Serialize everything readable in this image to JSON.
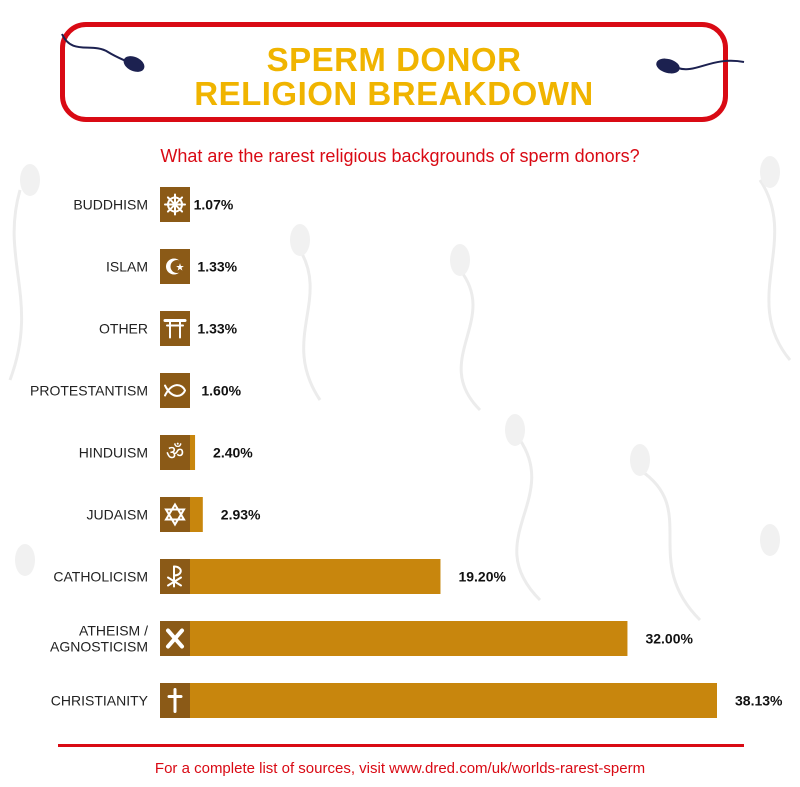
{
  "header": {
    "title_line1": "SPERM DONOR",
    "title_line2": "RELIGION BREAKDOWN",
    "subtitle": "What are the rarest religious backgrounds of sperm donors?"
  },
  "footer": {
    "text": "For a complete list of sources, visit www.dred.com/uk/worlds-rarest-sperm"
  },
  "colors": {
    "bar": "#c8860d",
    "icon_box": "#8b5a17",
    "title": "#f0b400",
    "accent_red": "#d90a14",
    "sperm_head": "#1c2150"
  },
  "chart_data": {
    "type": "bar",
    "orientation": "horizontal",
    "unit": "%",
    "categories": [
      "BUDDHISM",
      "ISLAM",
      "OTHER",
      "PROTESTANTISM",
      "HINDUISM",
      "JUDAISM",
      "CATHOLICISM",
      "ATHEISM / AGNOSTICISM",
      "CHRISTIANITY"
    ],
    "values": [
      1.07,
      1.33,
      1.33,
      1.6,
      2.4,
      2.93,
      19.2,
      32.0,
      38.13
    ],
    "value_labels": [
      "1.07%",
      "1.33%",
      "1.33%",
      "1.60%",
      "2.40%",
      "2.93%",
      "19.20%",
      "32.00%",
      "38.13%"
    ],
    "icons": [
      "dharma-wheel-icon",
      "star-crescent-icon",
      "torii-gate-icon",
      "ichthys-fish-icon",
      "om-icon",
      "star-of-david-icon",
      "chi-rho-icon",
      "x-icon",
      "cross-icon"
    ],
    "xlim": [
      0,
      38.13
    ],
    "axes_visible": false,
    "grid": false,
    "legend": "none"
  }
}
